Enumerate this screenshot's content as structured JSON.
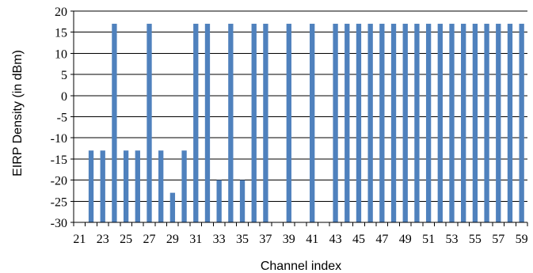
{
  "chart_data": {
    "type": "bar",
    "xlabel": "Channel index",
    "ylabel": "EIRP Density (in dBm)",
    "ylim": [
      -30,
      20
    ],
    "yticks": [
      20,
      15,
      10,
      5,
      0,
      -5,
      -10,
      -15,
      -20,
      -25,
      -30
    ],
    "xticks": [
      21,
      23,
      25,
      27,
      29,
      31,
      33,
      35,
      37,
      39,
      41,
      43,
      45,
      47,
      49,
      51,
      53,
      55,
      57,
      59
    ],
    "grid": true,
    "bar_color": "#4f81bd",
    "categories": [
      21,
      22,
      23,
      24,
      25,
      26,
      27,
      28,
      29,
      30,
      31,
      32,
      33,
      34,
      35,
      36,
      37,
      38,
      39,
      40,
      41,
      42,
      43,
      44,
      45,
      46,
      47,
      48,
      49,
      50,
      51,
      52,
      53,
      54,
      55,
      56,
      57,
      58,
      59
    ],
    "values": [
      null,
      -13,
      -13,
      17,
      -13,
      -13,
      17,
      -13,
      -23,
      -13,
      17,
      17,
      -20,
      17,
      -20,
      17,
      17,
      null,
      17,
      null,
      17,
      null,
      17,
      17,
      17,
      17,
      17,
      17,
      17,
      17,
      17,
      17,
      17,
      17,
      17,
      17,
      17,
      17,
      17
    ]
  }
}
